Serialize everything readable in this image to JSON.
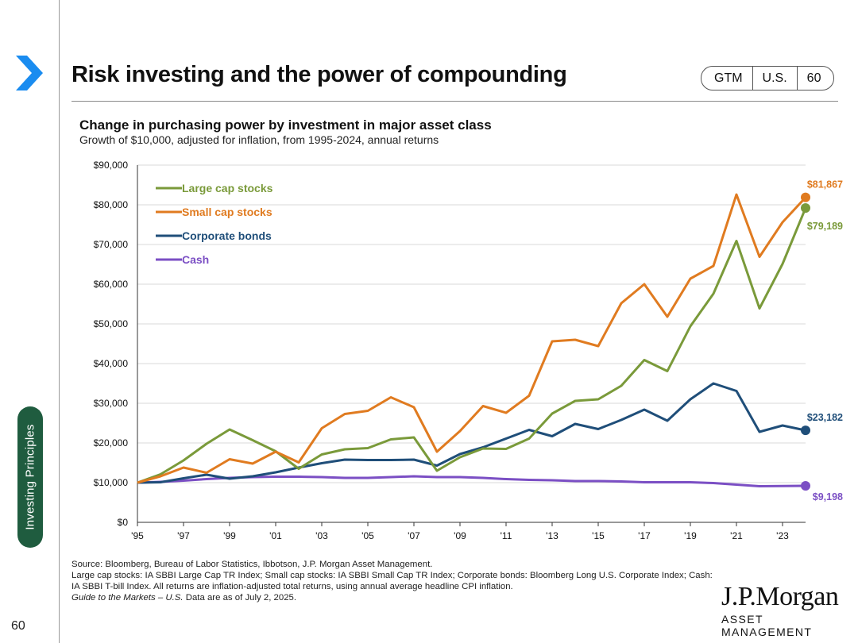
{
  "page": {
    "title": "Risk investing and the power of compounding",
    "tags": [
      "GTM",
      "U.S.",
      "60"
    ],
    "side_tab": "Investing Principles",
    "page_number": "60"
  },
  "chart_data": {
    "type": "line",
    "title": "Change in purchasing power by investment in major asset class",
    "subtitle": "Growth of $10,000, adjusted for inflation, from 1995-2024, annual returns",
    "x": [
      1995,
      1996,
      1997,
      1998,
      1999,
      2000,
      2001,
      2002,
      2003,
      2004,
      2005,
      2006,
      2007,
      2008,
      2009,
      2010,
      2011,
      2012,
      2013,
      2014,
      2015,
      2016,
      2017,
      2018,
      2019,
      2020,
      2021,
      2022,
      2023,
      2024
    ],
    "x_tick_labels": [
      "'95",
      "'97",
      "'99",
      "'01",
      "'03",
      "'05",
      "'07",
      "'09",
      "'11",
      "'13",
      "'15",
      "'17",
      "'19",
      "'21",
      "'23"
    ],
    "y_tick_labels": [
      "$0",
      "$10,000",
      "$20,000",
      "$30,000",
      "$40,000",
      "$50,000",
      "$60,000",
      "$70,000",
      "$80,000",
      "$90,000"
    ],
    "ylim": [
      0,
      90000
    ],
    "xlabel": "",
    "ylabel": "",
    "grid": true,
    "legend_position": "top-left",
    "series": [
      {
        "name": "Large cap stocks",
        "color": "#7a9a3a",
        "end_label": "$79,189",
        "values": [
          10000,
          12100,
          15600,
          19800,
          23400,
          20700,
          17900,
          13500,
          17100,
          18400,
          18700,
          20900,
          21400,
          13000,
          16400,
          18600,
          18500,
          21100,
          27400,
          30600,
          31000,
          34400,
          40900,
          38100,
          49400,
          57600,
          70900,
          53900,
          65100,
          79189
        ]
      },
      {
        "name": "Small cap stocks",
        "color": "#e07b20",
        "end_label": "$81,867",
        "values": [
          10000,
          11600,
          13800,
          12500,
          15900,
          14800,
          17800,
          15100,
          23700,
          27300,
          28100,
          31500,
          29000,
          17800,
          23000,
          29300,
          27600,
          31900,
          45600,
          46000,
          44400,
          55200,
          60000,
          51800,
          61400,
          64600,
          82600,
          66900,
          75600,
          81867
        ]
      },
      {
        "name": "Corporate bonds",
        "color": "#1f4e79",
        "end_label": "$23,182",
        "values": [
          10000,
          10100,
          11100,
          12000,
          11000,
          11600,
          12600,
          13800,
          14900,
          15800,
          15700,
          15700,
          15800,
          14300,
          17200,
          18900,
          21100,
          23300,
          21700,
          24800,
          23500,
          25800,
          28400,
          25600,
          31000,
          35000,
          33100,
          22800,
          24400,
          23182
        ]
      },
      {
        "name": "Cash",
        "color": "#7b4fc4",
        "end_label": "$9,198",
        "values": [
          10000,
          10200,
          10500,
          10900,
          11200,
          11400,
          11500,
          11500,
          11400,
          11200,
          11200,
          11400,
          11600,
          11400,
          11400,
          11200,
          10900,
          10700,
          10600,
          10400,
          10400,
          10300,
          10100,
          10100,
          10100,
          9900,
          9500,
          9100,
          9150,
          9198
        ]
      }
    ]
  },
  "footnotes": {
    "source": "Source: Bloomberg, Bureau of Labor Statistics, Ibbotson, J.P. Morgan Asset Management.",
    "detail": "Large cap stocks: IA SBBI Large Cap TR Index; Small cap stocks: IA SBBI Small Cap TR Index; Corporate bonds: Bloomberg Long U.S. Corporate Index; Cash: IA SBBI T-bill Index. All returns are inflation-adjusted total returns, using annual average headline CPI inflation.",
    "guide_title": "Guide to the Markets – U.S.",
    "as_of": "Data are as of July 2, 2025."
  },
  "logo": {
    "name": "J.P.Morgan",
    "subtitle": "ASSET MANAGEMENT"
  },
  "colors": {
    "accent_blue": "#1a8cf0",
    "side_tab": "#1f5c3f"
  }
}
